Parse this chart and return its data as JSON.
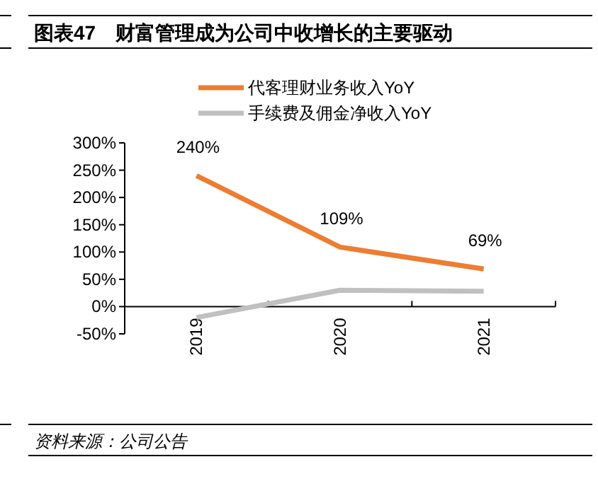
{
  "chart_data": {
    "type": "line",
    "title": "图表47　财富管理成为公司中收增长的主要驱动",
    "categories": [
      "2019",
      "2020",
      "2021"
    ],
    "series": [
      {
        "name": "代客理财业务收入YoY",
        "color": "#ed7d31",
        "values": [
          240,
          109,
          69
        ],
        "value_labels": [
          "240%",
          "109%",
          "69%"
        ]
      },
      {
        "name": "手续费及佣金净收入YoY",
        "color": "#c0c0c0",
        "values": [
          -20,
          30,
          28
        ]
      }
    ],
    "ylim": [
      -50,
      300
    ],
    "yticks": [
      {
        "value": -50,
        "label": "-50%"
      },
      {
        "value": 0,
        "label": "0%"
      },
      {
        "value": 50,
        "label": "50%"
      },
      {
        "value": 100,
        "label": "100%"
      },
      {
        "value": 150,
        "label": "150%"
      },
      {
        "value": 200,
        "label": "200%"
      },
      {
        "value": 250,
        "label": "250%"
      },
      {
        "value": 300,
        "label": "300%"
      }
    ],
    "legend": "top",
    "grid": false,
    "annotations": [
      "资料来源：公司公告"
    ]
  }
}
